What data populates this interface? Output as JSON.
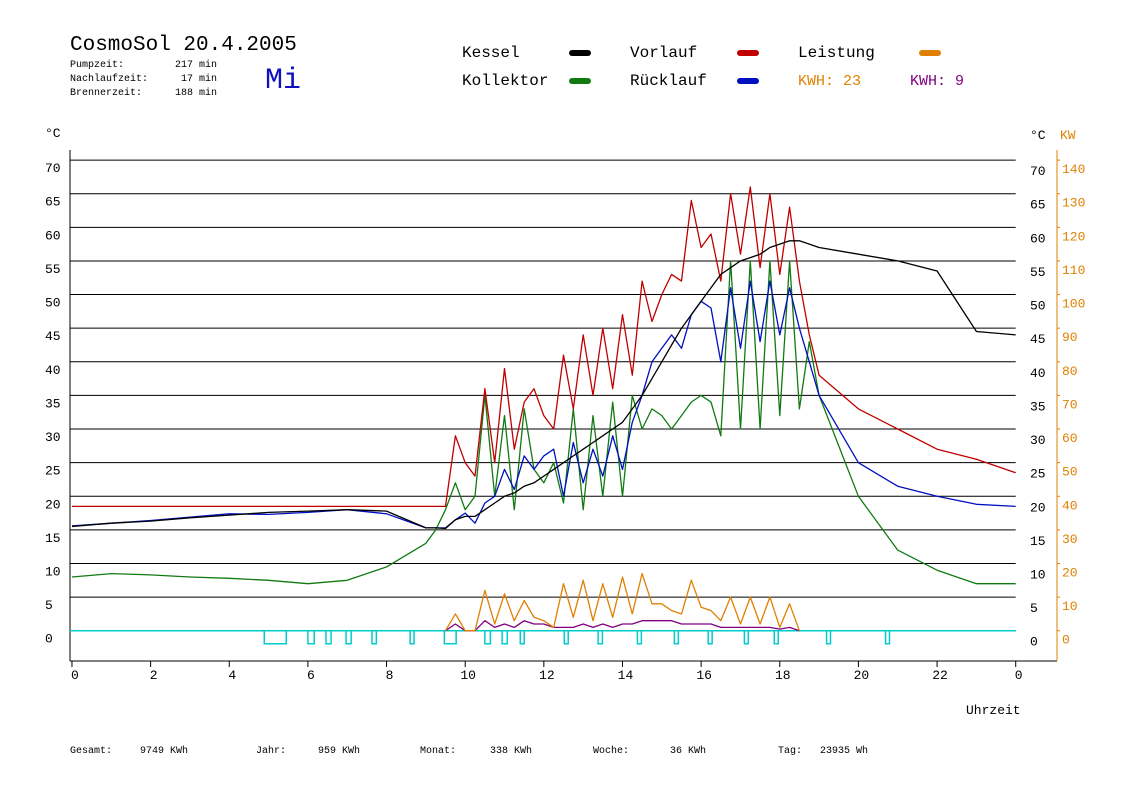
{
  "chart_data": {
    "type": "line",
    "title": "CosmoSol 20.4.2005",
    "weekday": "Mi",
    "stats": [
      {
        "label": "Pumpzeit:",
        "value": "217 min"
      },
      {
        "label": "Nachlaufzeit:",
        "value": "17 min"
      },
      {
        "label": "Brennerzeit:",
        "value": "188 min"
      }
    ],
    "totals": [
      {
        "label": "Gesamt:",
        "value": "9749 KWh"
      },
      {
        "label": "Jahr:",
        "value": "959 KWh"
      },
      {
        "label": "Monat:",
        "value": "338 KWh"
      },
      {
        "label": "Woche:",
        "value": "36 KWh"
      },
      {
        "label": "Tag:",
        "value": "23935 Wh"
      }
    ],
    "x_label": "Uhrzeit",
    "y_unit": "°C",
    "y2_unit": "KW",
    "xlim": [
      -0.05,
      25.05
    ],
    "xticks": [
      0,
      2,
      4,
      6,
      8,
      10,
      12,
      14,
      16,
      18,
      20,
      22,
      {
        "value": 24,
        "label": "0"
      }
    ],
    "ylim": [
      -4.5,
      71.5
    ],
    "yticks": [
      0,
      5,
      10,
      15,
      20,
      25,
      30,
      35,
      40,
      45,
      50,
      55,
      60,
      65,
      70
    ],
    "y2lim": [
      -9,
      143
    ],
    "y2ticks": [
      0,
      10,
      20,
      30,
      40,
      50,
      60,
      70,
      80,
      90,
      100,
      110,
      120,
      130,
      140
    ],
    "grid": true,
    "x": [
      0,
      1,
      2,
      3,
      4,
      5,
      6,
      7,
      8,
      9,
      9.25,
      9.5,
      9.75,
      10,
      10.25,
      10.5,
      10.75,
      11,
      11.25,
      11.5,
      11.75,
      12,
      12.25,
      12.5,
      12.75,
      13,
      13.25,
      13.5,
      13.75,
      14,
      14.25,
      14.5,
      14.75,
      15,
      15.25,
      15.5,
      15.75,
      16,
      16.25,
      16.5,
      16.75,
      17,
      17.25,
      17.5,
      17.75,
      18,
      18.25,
      18.5,
      18.75,
      19,
      20,
      21,
      22,
      23,
      24
    ],
    "series": [
      {
        "name": "Kessel",
        "color": "#000000",
        "values": [
          15.5,
          16,
          16.3,
          16.8,
          17.2,
          17.6,
          17.8,
          18,
          17.8,
          15.3,
          15.3,
          15.2,
          16.5,
          17,
          17,
          18,
          19,
          20,
          20.5,
          21.5,
          22,
          23,
          24,
          25,
          26,
          27,
          28,
          29,
          30,
          31,
          33,
          35,
          37.5,
          40,
          42.5,
          45,
          47,
          49,
          51,
          53,
          54,
          55,
          55.5,
          56,
          57,
          57.5,
          58,
          58,
          57.5,
          57,
          56,
          55,
          53.5,
          44.5,
          44
        ]
      },
      {
        "name": "Kollektor",
        "color": "#117a11",
        "values": [
          8,
          8.5,
          8.3,
          8,
          7.8,
          7.5,
          7,
          7.5,
          9.5,
          13,
          15,
          18,
          22,
          18,
          20,
          35,
          20,
          32,
          18,
          33,
          24,
          22,
          25,
          19,
          33,
          18,
          32,
          20,
          34,
          20,
          35,
          30,
          33,
          32,
          30,
          32,
          34,
          35,
          34,
          29,
          55,
          30,
          55,
          30,
          55,
          32,
          55,
          33,
          43,
          35,
          20,
          12,
          9,
          7,
          7
        ]
      },
      {
        "name": "Vorlauf",
        "color": "#c00000",
        "values": [
          18.5,
          18.5,
          18.5,
          18.5,
          18.5,
          18.5,
          18.5,
          18.5,
          18.5,
          18.5,
          18.5,
          18.5,
          29,
          25,
          23,
          36,
          25,
          39,
          27,
          34,
          36,
          32,
          30,
          41,
          33,
          44,
          35,
          45,
          36,
          47,
          38,
          52,
          46,
          50,
          53,
          52,
          64,
          57,
          59,
          52,
          65,
          56,
          66,
          54,
          65,
          53,
          63,
          52,
          44,
          38,
          33,
          30,
          27,
          25.5,
          23.5
        ]
      },
      {
        "name": "Rücklauf",
        "color": "#0010c0",
        "values": [
          15.6,
          16,
          16.4,
          16.9,
          17.4,
          17.3,
          17.6,
          18,
          17.4,
          15.3,
          15.3,
          15.3,
          16.5,
          17.5,
          16,
          19,
          20,
          24,
          21,
          26,
          24,
          26,
          27,
          20,
          28,
          22,
          27,
          23,
          29,
          24,
          31,
          35,
          40,
          42,
          44,
          42,
          47,
          49,
          48,
          40,
          51,
          42,
          52,
          43,
          52,
          44,
          51,
          45,
          40,
          35,
          25,
          21.5,
          20,
          18.8,
          18.5
        ]
      },
      {
        "name": "Leistung",
        "kwh_label": "KWH: 23",
        "color": "#e08000",
        "axis": "y2",
        "values": [
          null,
          null,
          null,
          null,
          null,
          null,
          null,
          null,
          null,
          null,
          null,
          0,
          5,
          0,
          0,
          12,
          2,
          11,
          3,
          9,
          4,
          3,
          1,
          14,
          4,
          15,
          3,
          14,
          4,
          16,
          5,
          17,
          8,
          8,
          6,
          5,
          15,
          7,
          6,
          3,
          10,
          2,
          10,
          2,
          10,
          1,
          8,
          0,
          null,
          null,
          null,
          null,
          null,
          null,
          null
        ]
      },
      {
        "kwh_label": "KWH: 9",
        "color": "#800080",
        "axis": "y2",
        "values": [
          null,
          null,
          null,
          null,
          null,
          null,
          null,
          null,
          null,
          null,
          null,
          0,
          2,
          0,
          0,
          3,
          1,
          2,
          1,
          3,
          2,
          2,
          1,
          1,
          1,
          2,
          1,
          2,
          1,
          2,
          2,
          3,
          3,
          3,
          3,
          2,
          2,
          2,
          2,
          1,
          1,
          1,
          1,
          1,
          1,
          0.5,
          1,
          0,
          null,
          null,
          null,
          null,
          null,
          null,
          null
        ]
      }
    ],
    "pump_color": "#00cccc",
    "pump": [
      [
        4.89,
        5.45
      ],
      [
        6.0,
        6.16
      ],
      [
        6.46,
        6.59
      ],
      [
        6.97,
        7.1
      ],
      [
        7.63,
        7.74
      ],
      [
        8.6,
        8.7
      ],
      [
        9.47,
        9.77
      ],
      [
        10.5,
        10.64
      ],
      [
        10.94,
        11.07
      ],
      [
        11.4,
        11.5
      ],
      [
        12.52,
        12.62
      ],
      [
        13.38,
        13.49
      ],
      [
        14.38,
        14.48
      ],
      [
        15.32,
        15.42
      ],
      [
        16.18,
        16.28
      ],
      [
        17.1,
        17.2
      ],
      [
        17.86,
        17.96
      ],
      [
        19.19,
        19.29
      ],
      [
        20.69,
        20.79
      ]
    ]
  }
}
